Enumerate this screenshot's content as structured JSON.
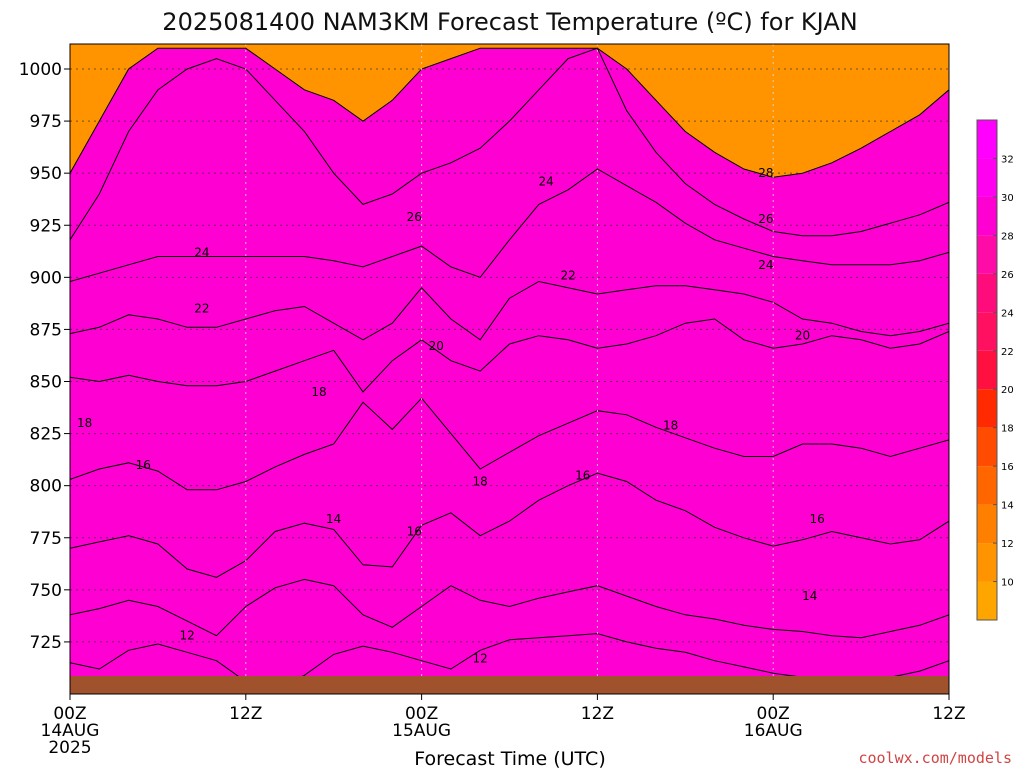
{
  "title": "2025081400 NAM3KM Forecast Temperature (ºC) for KJAN",
  "credit": "coolwx.com/models",
  "colors": {
    "ground": "#a0522d",
    "band_8_10": "#ffa500",
    "band_10_12": "#ff9400",
    "band_12_14": "#ff8000",
    "band_14_16": "#ff6600",
    "band_16_18": "#ff4c00",
    "band_18_20": "#ff2a00",
    "band_20_22": "#ff1040",
    "band_22_24": "#ff1060",
    "band_24_26": "#ff0c7c",
    "band_26_28": "#ff0ca8",
    "band_28_30": "#ff00d2",
    "band_30_32": "#ff00f0"
  },
  "chart_data": {
    "type": "heatmap",
    "title": "2025081400 NAM3KM Forecast Temperature (ºC) for KJAN",
    "xlabel": "Forecast Time (UTC)",
    "ylabel": "",
    "x": {
      "range_hours": [
        0,
        60
      ],
      "ticks": [
        {
          "hour": 0,
          "label": "00Z",
          "sub": [
            "14AUG",
            "2025"
          ]
        },
        {
          "hour": 12,
          "label": "12Z",
          "sub": []
        },
        {
          "hour": 24,
          "label": "00Z",
          "sub": [
            "15AUG"
          ]
        },
        {
          "hour": 36,
          "label": "12Z",
          "sub": []
        },
        {
          "hour": 48,
          "label": "00Z",
          "sub": [
            "16AUG"
          ]
        },
        {
          "hour": 60,
          "label": "12Z",
          "sub": []
        }
      ]
    },
    "y": {
      "range_hpa": [
        1012,
        700
      ],
      "ticks": [
        725,
        750,
        775,
        800,
        825,
        850,
        875,
        900,
        925,
        950,
        975,
        1000
      ]
    },
    "colorbar": {
      "ticks": [
        10,
        12,
        14,
        16,
        18,
        20,
        22,
        24,
        26,
        28,
        30,
        32
      ],
      "bins": [
        {
          "min": 8,
          "max": 10,
          "color": "#ffa500"
        },
        {
          "min": 10,
          "max": 12,
          "color": "#ff9400"
        },
        {
          "min": 12,
          "max": 14,
          "color": "#ff8000"
        },
        {
          "min": 14,
          "max": 16,
          "color": "#ff6600"
        },
        {
          "min": 16,
          "max": 18,
          "color": "#ff4c00"
        },
        {
          "min": 18,
          "max": 20,
          "color": "#ff2a00"
        },
        {
          "min": 20,
          "max": 22,
          "color": "#ff1040"
        },
        {
          "min": 22,
          "max": 24,
          "color": "#ff1060"
        },
        {
          "min": 24,
          "max": 26,
          "color": "#ff0c7c"
        },
        {
          "min": 26,
          "max": 28,
          "color": "#ff0ca8"
        },
        {
          "min": 28,
          "max": 30,
          "color": "#ff00d2"
        },
        {
          "min": 30,
          "max": 32,
          "color": "#ff00f0"
        },
        {
          "min": 32,
          "max": 34,
          "color": "#ff00ff"
        }
      ]
    },
    "contour_interval": 2,
    "hours": [
      0,
      2,
      4,
      6,
      8,
      10,
      12,
      14,
      16,
      18,
      20,
      22,
      24,
      26,
      28,
      30,
      32,
      34,
      36,
      38,
      40,
      42,
      44,
      46,
      48,
      50,
      52,
      54,
      56,
      58,
      60
    ],
    "contours": [
      {
        "value": 12,
        "pressure": [
          715,
          712,
          721,
          724,
          720,
          716,
          706,
          703,
          709,
          719,
          723,
          720,
          716,
          712,
          721,
          726,
          727,
          728,
          729,
          725,
          722,
          720,
          716,
          713,
          710,
          708,
          705,
          705,
          708,
          711,
          716
        ]
      },
      {
        "value": 14,
        "pressure": [
          738,
          741,
          745,
          742,
          735,
          728,
          742,
          751,
          755,
          752,
          738,
          732,
          742,
          752,
          745,
          742,
          746,
          749,
          752,
          747,
          742,
          738,
          736,
          733,
          731,
          730,
          728,
          727,
          730,
          733,
          738
        ]
      },
      {
        "value": 16,
        "pressure": [
          770,
          773,
          776,
          772,
          760,
          756,
          764,
          778,
          782,
          779,
          762,
          761,
          781,
          787,
          776,
          783,
          793,
          800,
          806,
          802,
          793,
          788,
          780,
          775,
          771,
          774,
          778,
          775,
          772,
          774,
          783
        ]
      },
      {
        "value": 18,
        "pressure": [
          803,
          808,
          811,
          807,
          798,
          798,
          802,
          809,
          815,
          820,
          840,
          827,
          842,
          825,
          808,
          816,
          824,
          830,
          836,
          834,
          828,
          823,
          818,
          814,
          814,
          820,
          820,
          818,
          814,
          818,
          822
        ]
      },
      {
        "value": 20,
        "pressure": [
          852,
          850,
          853,
          850,
          848,
          848,
          850,
          855,
          860,
          865,
          845,
          860,
          870,
          860,
          855,
          868,
          872,
          870,
          866,
          868,
          872,
          878,
          880,
          870,
          866,
          868,
          872,
          870,
          866,
          868,
          874
        ]
      },
      {
        "value": 22,
        "pressure": [
          873,
          876,
          882,
          880,
          876,
          876,
          880,
          884,
          886,
          878,
          870,
          878,
          895,
          880,
          870,
          890,
          898,
          895,
          892,
          894,
          896,
          896,
          894,
          892,
          888,
          880,
          878,
          874,
          872,
          874,
          878
        ]
      },
      {
        "value": 24,
        "pressure": [
          898,
          902,
          906,
          910,
          910,
          910,
          910,
          910,
          910,
          908,
          905,
          910,
          915,
          905,
          900,
          918,
          935,
          942,
          952,
          944,
          936,
          926,
          918,
          914,
          910,
          908,
          906,
          906,
          906,
          908,
          912
        ]
      },
      {
        "value": 26,
        "pressure": [
          918,
          940,
          970,
          990,
          1000,
          1005,
          1000,
          985,
          970,
          950,
          935,
          940,
          950,
          955,
          962,
          975,
          990,
          1005,
          1010,
          980,
          960,
          945,
          935,
          928,
          922,
          920,
          920,
          922,
          926,
          930,
          936
        ]
      },
      {
        "value": 28,
        "pressure": [
          950,
          975,
          1000,
          1010,
          1010,
          1010,
          1010,
          1000,
          990,
          985,
          975,
          985,
          1000,
          1005,
          1010,
          1010,
          1010,
          1010,
          1010,
          1000,
          985,
          970,
          960,
          952,
          948,
          950,
          955,
          962,
          970,
          978,
          990
        ]
      }
    ],
    "contour_labels": [
      {
        "value": 12,
        "hour": 8,
        "pressure": 728
      },
      {
        "value": 12,
        "hour": 28,
        "pressure": 717
      },
      {
        "value": 14,
        "hour": 18,
        "pressure": 784
      },
      {
        "value": 14,
        "hour": 50.5,
        "pressure": 747
      },
      {
        "value": 16,
        "hour": 5,
        "pressure": 810
      },
      {
        "value": 16,
        "hour": 23.5,
        "pressure": 778
      },
      {
        "value": 16,
        "hour": 35,
        "pressure": 805
      },
      {
        "value": 16,
        "hour": 51,
        "pressure": 784
      },
      {
        "value": 18,
        "hour": 1,
        "pressure": 830
      },
      {
        "value": 18,
        "hour": 17,
        "pressure": 845
      },
      {
        "value": 18,
        "hour": 28,
        "pressure": 802
      },
      {
        "value": 18,
        "hour": 41,
        "pressure": 829
      },
      {
        "value": 20,
        "hour": 25,
        "pressure": 867
      },
      {
        "value": 20,
        "hour": 50,
        "pressure": 872
      },
      {
        "value": 22,
        "hour": 9,
        "pressure": 885
      },
      {
        "value": 22,
        "hour": 34,
        "pressure": 901
      },
      {
        "value": 24,
        "hour": 9,
        "pressure": 912
      },
      {
        "value": 24,
        "hour": 32.5,
        "pressure": 946
      },
      {
        "value": 24,
        "hour": 47.5,
        "pressure": 906
      },
      {
        "value": 26,
        "hour": 23.5,
        "pressure": 929
      },
      {
        "value": 26,
        "hour": 47.5,
        "pressure": 928
      },
      {
        "value": 28,
        "hour": 47.5,
        "pressure": 950
      }
    ]
  }
}
